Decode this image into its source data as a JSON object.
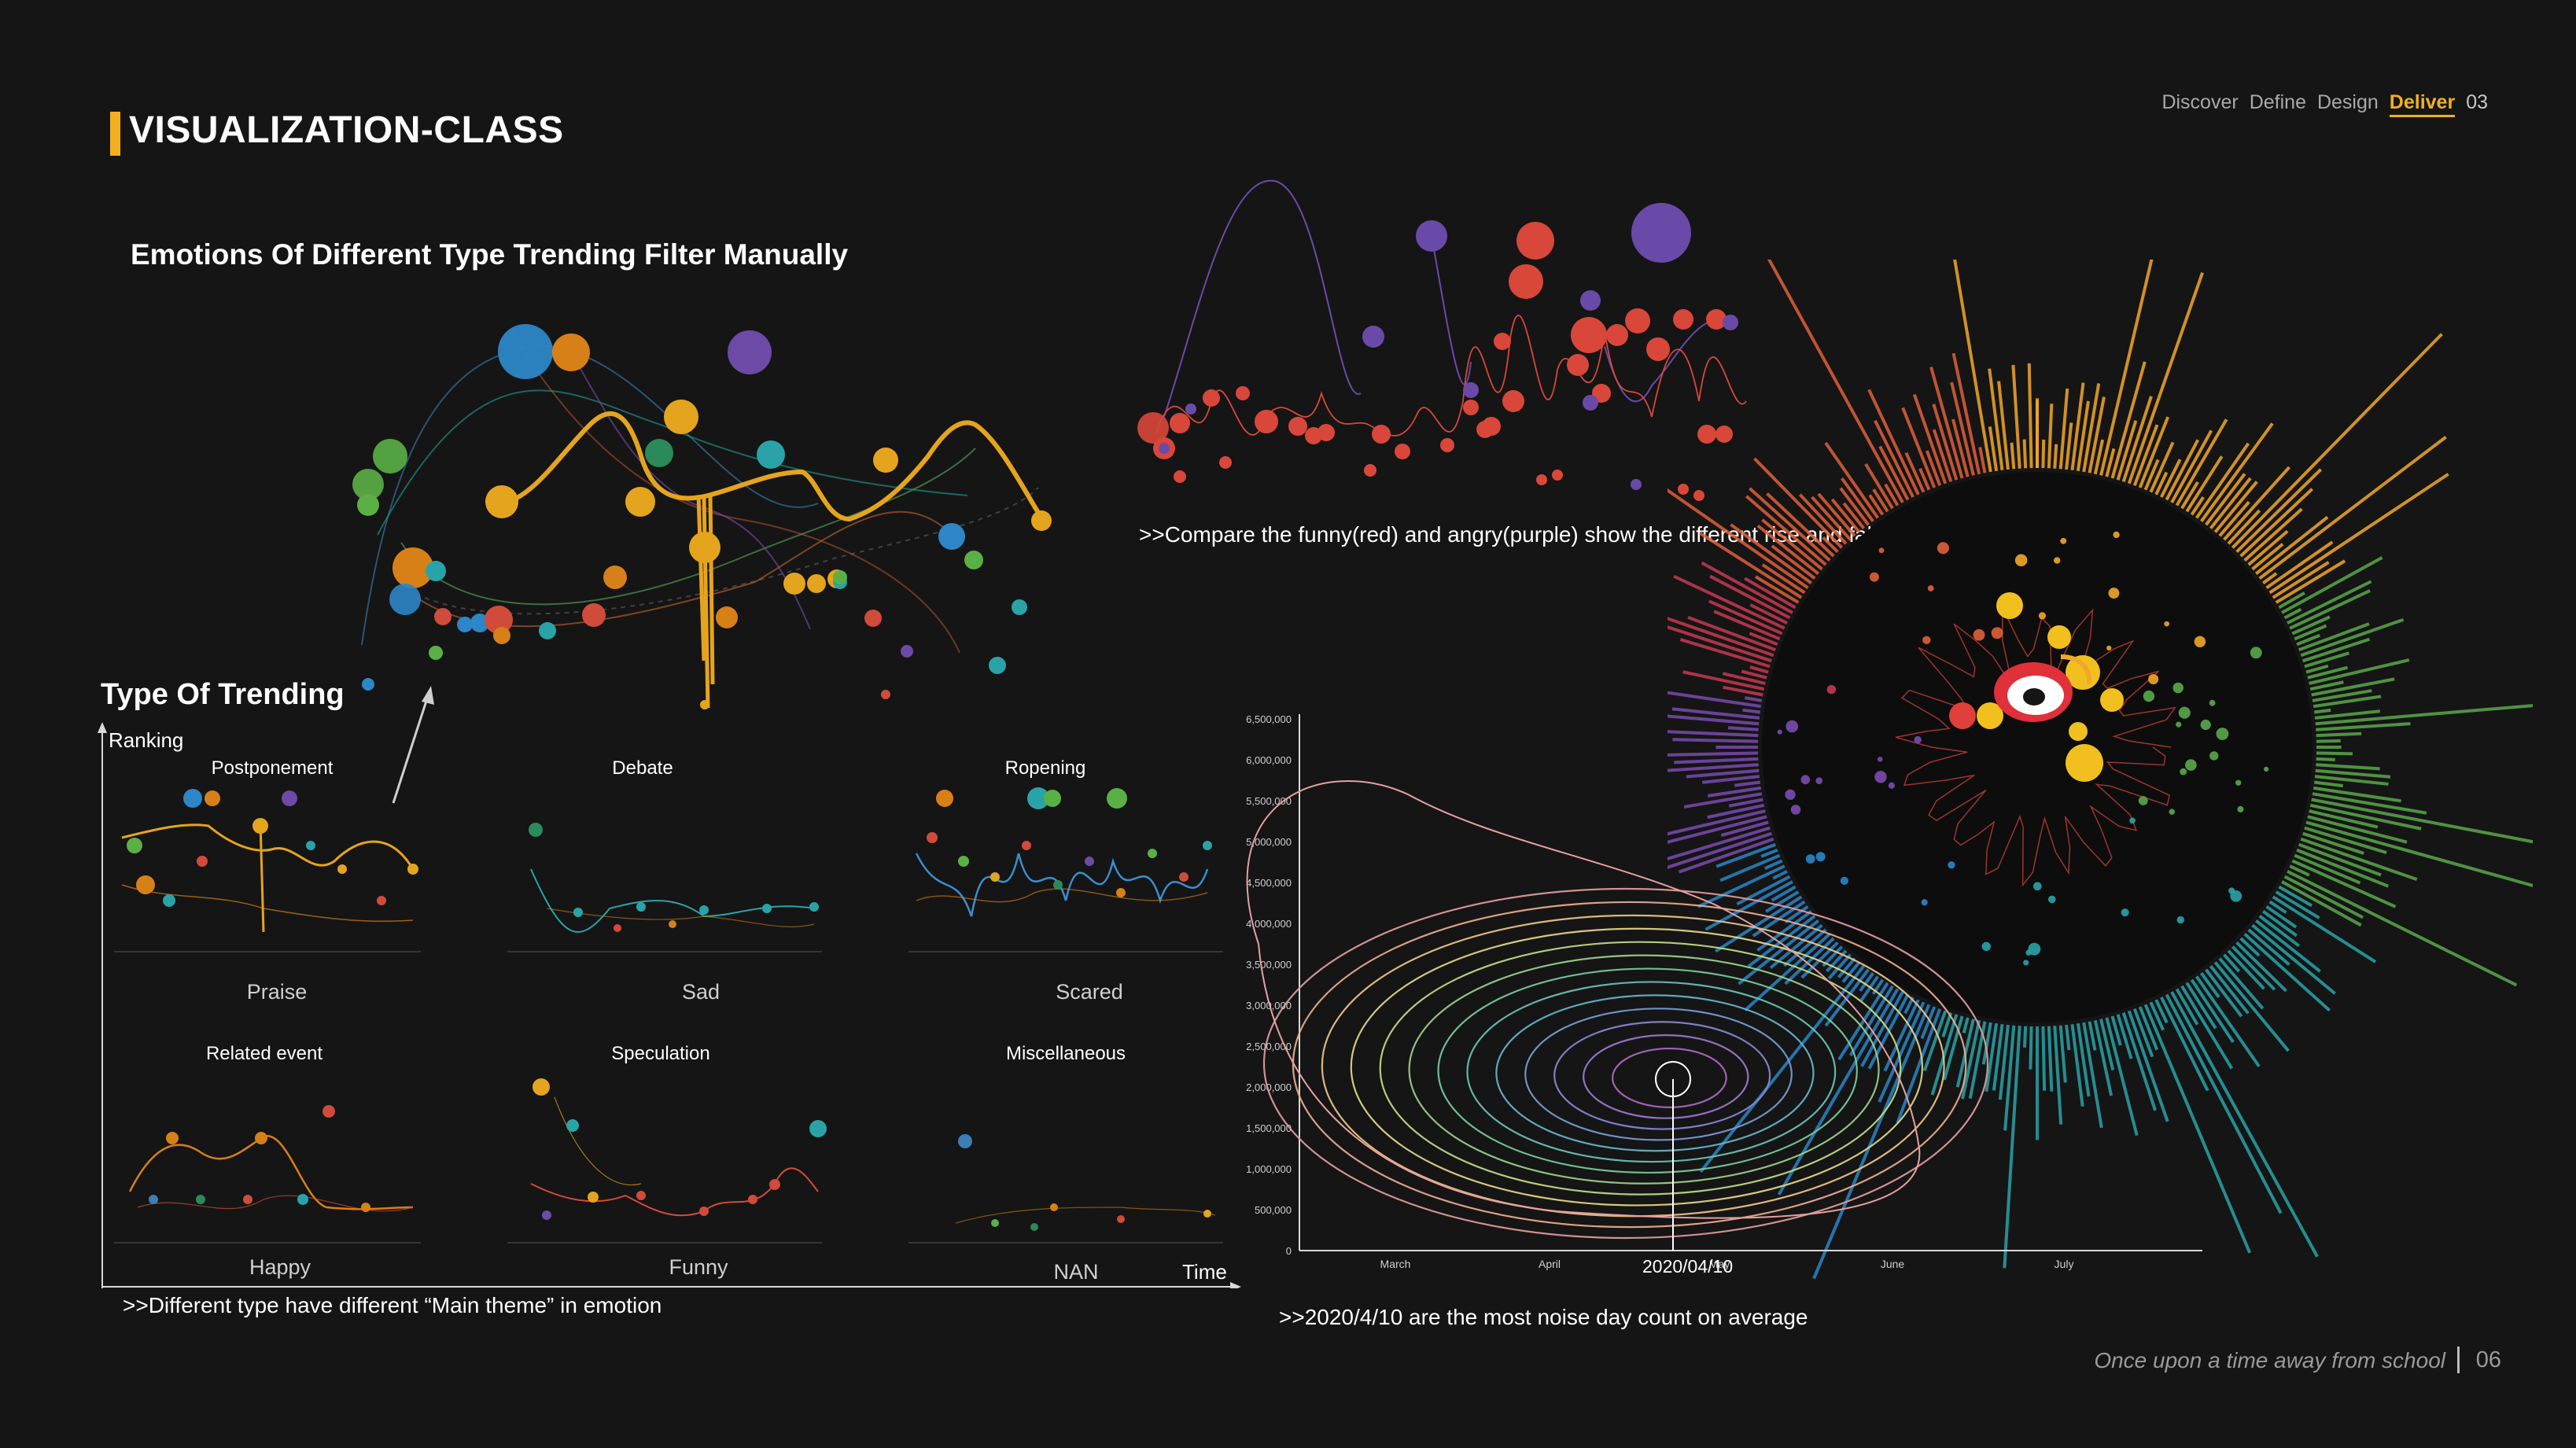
{
  "header": {
    "title": "VISUALIZATION-CLASS",
    "nav": [
      {
        "label": "Discover",
        "state": "normal"
      },
      {
        "label": "Define",
        "state": "normal"
      },
      {
        "label": "Design",
        "state": "normal"
      },
      {
        "label": "Deliver",
        "state": "active"
      },
      {
        "label": "03",
        "state": "current"
      }
    ]
  },
  "left": {
    "subtitle": "Emotions Of Different Type Trending Filter Manually",
    "type_heading": "Type Of Trending",
    "y_axis_label": "Ranking",
    "x_axis_label": "Time",
    "note": ">>Different type have different “Main theme” in emotion",
    "panels": [
      {
        "title": "Postponement",
        "emotion": "Praise"
      },
      {
        "title": "Debate",
        "emotion": "Sad"
      },
      {
        "title": "Ropening",
        "emotion": "Scared"
      },
      {
        "title": "Related event",
        "emotion": "Happy"
      },
      {
        "title": "Speculation",
        "emotion": "Funny"
      },
      {
        "title": "Miscellaneous",
        "emotion": "NAN"
      }
    ]
  },
  "right": {
    "compare_note": ">>Compare the funny(red) and angry(purple)  show the different  rise and fall on these mouths",
    "contour_note": ">>2020/4/10 are the most noise day count on average",
    "peak_label": "2020/04/10",
    "y_ticks": [
      "6,500,000",
      "6,000,000",
      "5,500,000",
      "5,000,000",
      "4,500,000",
      "4,000,000",
      "3,500,000",
      "3,000,000",
      "2,500,000",
      "2,000,000",
      "1,500,000",
      "1,000,000",
      "500,000",
      "0"
    ],
    "x_ticks": [
      "March",
      "April",
      "May",
      "June",
      "July"
    ]
  },
  "footer": {
    "tagline": "Once upon a time away from school",
    "page": "06"
  },
  "colors": {
    "accent": "#f2b01e",
    "funny": "#d9473a",
    "angry": "#6a4aa8",
    "background": "#151515"
  }
}
